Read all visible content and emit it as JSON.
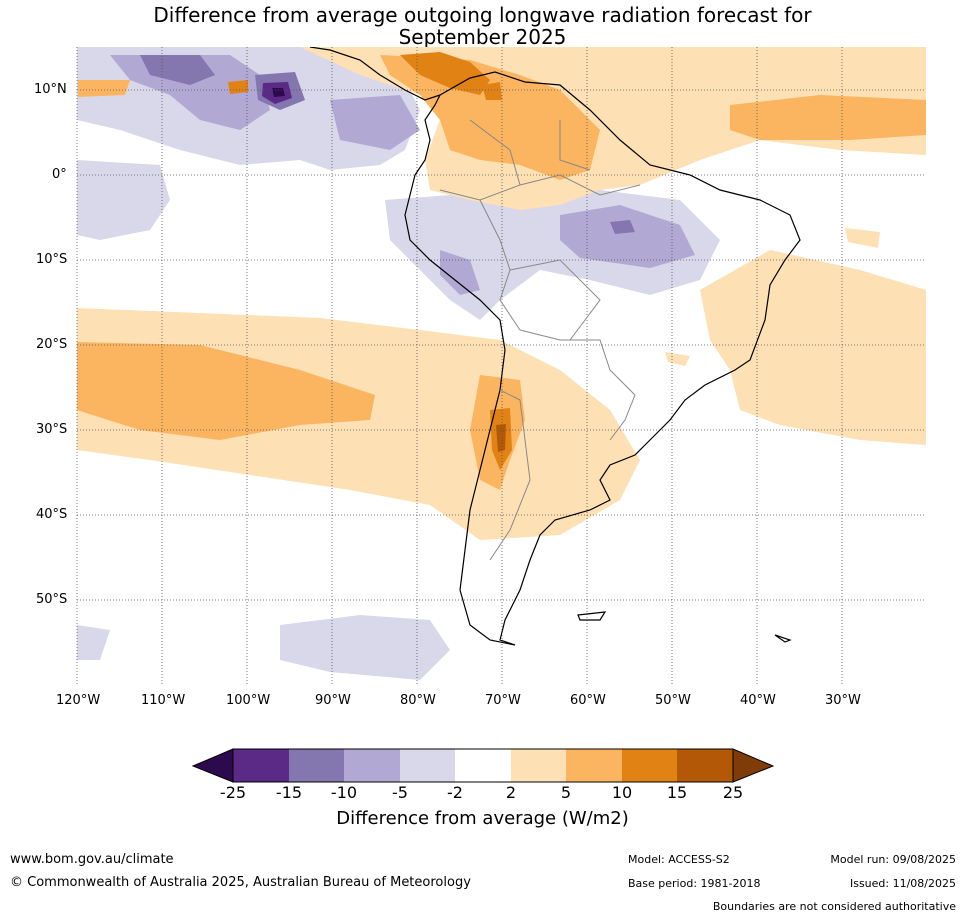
{
  "title_line1": "Difference from average outgoing longwave radiation forecast for",
  "title_line2": "September 2025",
  "map": {
    "lon_labels": [
      "120°W",
      "110°W",
      "100°W",
      "90°W",
      "80°W",
      "70°W",
      "60°W",
      "50°W",
      "40°W",
      "30°W"
    ],
    "lat_labels": [
      "10°N",
      "0°",
      "10°S",
      "20°S",
      "30°S",
      "40°S",
      "50°S"
    ],
    "gridlines": "dotted"
  },
  "legend": {
    "title": "Difference from average (W/m2)",
    "ticks": [
      "-25",
      "-15",
      "-10",
      "-5",
      "-2",
      "2",
      "5",
      "10",
      "15",
      "25"
    ],
    "colors": [
      "#2d0a4e",
      "#5a2a86",
      "#8476ae",
      "#b1a9d3",
      "#d9d8ea",
      "#ffffff",
      "#fde0b4",
      "#fbb460",
      "#e08214",
      "#b35806",
      "#7f3b08"
    ]
  },
  "footer": {
    "website": "www.bom.gov.au/climate",
    "copyright": "© Commonwealth of Australia 2025, Australian Bureau of Meteorology",
    "model": "Model: ACCESS-S2",
    "base_period": "Base period: 1981-2018",
    "model_run": "Model run: 09/08/2025",
    "issued": "Issued: 11/08/2025",
    "disclaimer": "Boundaries are not considered authoritative"
  }
}
